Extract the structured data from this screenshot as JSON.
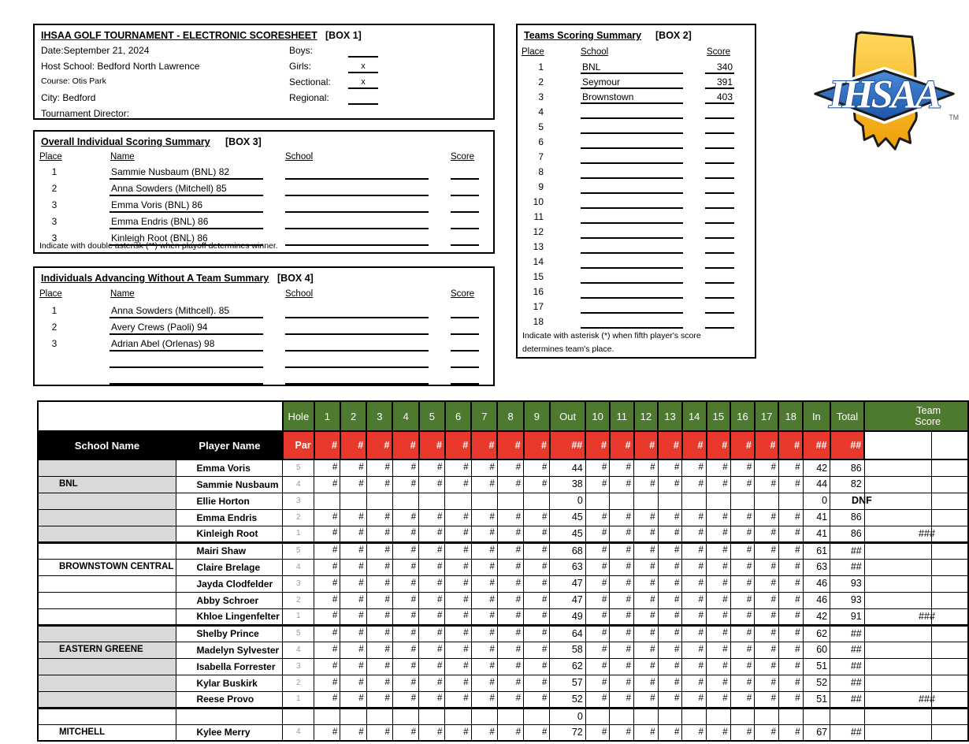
{
  "colors": {
    "header_green": "#4d7a2f",
    "header_red": "#e8392c",
    "shade_gray": "#d9d9d9",
    "pos_gray": "#999999",
    "logo_gold": "#f9b233",
    "logo_blue": "#2d6fc1"
  },
  "box1": {
    "title": "IHSAA GOLF TOURNAMENT - ELECTRONIC SCORESHEET",
    "box_label": "[BOX 1]",
    "fields": [
      {
        "label": "Date:September 21, 2024"
      },
      {
        "label": "Host School: Bedford North Lawrence"
      },
      {
        "label": "Course: Otis Park"
      },
      {
        "label": "City: Bedford"
      },
      {
        "label": "Tournament Director:"
      }
    ],
    "checks": [
      {
        "label": "Boys:",
        "value": ""
      },
      {
        "label": "Girls:",
        "value": "x"
      },
      {
        "label": "Sectional:",
        "value": "x"
      },
      {
        "label": "Regional:",
        "value": ""
      }
    ]
  },
  "box2": {
    "title": "Teams Scoring Summary",
    "box_label": "[BOX 2]",
    "headers": {
      "place": "Place",
      "school": "School",
      "score": "Score"
    },
    "rows": [
      {
        "place": "1",
        "school": "BNL",
        "score": "340"
      },
      {
        "place": "2",
        "school": "Seymour",
        "score": "391"
      },
      {
        "place": "3",
        "school": "Brownstown",
        "score": "403"
      },
      {
        "place": "4",
        "school": "",
        "score": ""
      },
      {
        "place": "5",
        "school": "",
        "score": ""
      },
      {
        "place": "6",
        "school": "",
        "score": ""
      },
      {
        "place": "7",
        "school": "",
        "score": ""
      },
      {
        "place": "8",
        "school": "",
        "score": ""
      },
      {
        "place": "9",
        "school": "",
        "score": ""
      },
      {
        "place": "10",
        "school": "",
        "score": ""
      },
      {
        "place": "11",
        "school": "",
        "score": ""
      },
      {
        "place": "12",
        "school": "",
        "score": ""
      },
      {
        "place": "13",
        "school": "",
        "score": ""
      },
      {
        "place": "14",
        "school": "",
        "score": ""
      },
      {
        "place": "15",
        "school": "",
        "score": ""
      },
      {
        "place": "16",
        "school": "",
        "score": ""
      },
      {
        "place": "17",
        "school": "",
        "score": ""
      },
      {
        "place": "18",
        "school": "",
        "score": ""
      }
    ],
    "note_line1": "Indicate with asterisk (*) when fifth player's score",
    "note_line2": "determines team's place."
  },
  "box3": {
    "title": "Overall Individual Scoring Summary",
    "box_label": "[BOX 3]",
    "headers": {
      "place": "Place",
      "name": "Name",
      "school": "School",
      "score": "Score"
    },
    "rows": [
      {
        "place": "1",
        "name": "Sammie Nusbaum (BNL) 82",
        "school": "",
        "score": ""
      },
      {
        "place": "2",
        "name": "Anna Sowders (Mitchell) 85",
        "school": "",
        "score": ""
      },
      {
        "place": "3",
        "name": "Emma Voris (BNL) 86",
        "school": "",
        "score": ""
      },
      {
        "place": "3",
        "name": "Emma Endris (BNL) 86",
        "school": "",
        "score": ""
      },
      {
        "place": "3",
        "name": "Kinleigh Root (BNL) 86",
        "school": "",
        "score": ""
      }
    ],
    "note": "Indicate with double asterisk (**) when playoff determines winner."
  },
  "box4": {
    "title": "Individuals Advancing Without A Team Summary",
    "box_label": "[BOX 4]",
    "headers": {
      "place": "Place",
      "name": "Name",
      "school": "School",
      "score": "Score"
    },
    "rows": [
      {
        "place": "1",
        "name": "Anna Sowders (Mithcell). 85",
        "school": "",
        "score": ""
      },
      {
        "place": "2",
        "name": "Avery Crews (Paoli) 94",
        "school": "",
        "score": ""
      },
      {
        "place": "3",
        "name": "Adrian Abel (Orlenas) 98",
        "school": "",
        "score": ""
      },
      {
        "place": "",
        "name": "",
        "school": "",
        "score": ""
      },
      {
        "place": "",
        "name": "",
        "school": "",
        "score": ""
      }
    ]
  },
  "logo": {
    "text": "IHSAA",
    "tm": "TM"
  },
  "scoretable": {
    "hash": "#",
    "school_header": "School Name",
    "player_header": "Player Name",
    "green_headers": [
      "Hole",
      "1",
      "2",
      "3",
      "4",
      "5",
      "6",
      "7",
      "8",
      "9",
      "Out",
      "10",
      "11",
      "12",
      "13",
      "14",
      "15",
      "16",
      "17",
      "18",
      "In",
      "Total",
      "Team Score"
    ],
    "par_row": {
      "label": "Par",
      "hole_fill": "#",
      "sum_fill": "##"
    },
    "rows": [
      {
        "school": "",
        "player": "Emma Voris",
        "pos": "5",
        "has_scores": true,
        "out": "44",
        "in": "42",
        "total": "86",
        "team": "",
        "shaded": true,
        "group_end": false
      },
      {
        "school": "BNL",
        "player": "Sammie Nusbaum",
        "pos": "4",
        "has_scores": true,
        "out": "38",
        "in": "44",
        "total": "82",
        "team": "",
        "shaded": true,
        "group_end": false
      },
      {
        "school": "",
        "player": "Ellie Horton",
        "pos": "3",
        "has_scores": false,
        "out": "0",
        "in": "0",
        "total": "DNF",
        "team": "",
        "shaded": true,
        "group_end": false
      },
      {
        "school": "",
        "player": "Emma Endris",
        "pos": "2",
        "has_scores": true,
        "out": "45",
        "in": "41",
        "total": "86",
        "team": "",
        "shaded": true,
        "group_end": false
      },
      {
        "school": "",
        "player": "Kinleigh Root",
        "pos": "1",
        "has_scores": true,
        "out": "45",
        "in": "41",
        "total": "86",
        "team": "###",
        "shaded": true,
        "group_end": true
      },
      {
        "school": "",
        "player": "Mairi Shaw",
        "pos": "5",
        "has_scores": true,
        "out": "68",
        "in": "61",
        "total": "##",
        "team": "",
        "shaded": false,
        "group_end": false
      },
      {
        "school": "BROWNSTOWN CENTRAL",
        "player": "Claire Brelage",
        "pos": "4",
        "has_scores": true,
        "out": "63",
        "in": "63",
        "total": "##",
        "team": "",
        "shaded": false,
        "group_end": false
      },
      {
        "school": "",
        "player": "Jayda Clodfelder",
        "pos": "3",
        "has_scores": true,
        "out": "47",
        "in": "46",
        "total": "93",
        "team": "",
        "shaded": false,
        "group_end": false
      },
      {
        "school": "",
        "player": "Abby Schroer",
        "pos": "2",
        "has_scores": true,
        "out": "47",
        "in": "46",
        "total": "93",
        "team": "",
        "shaded": false,
        "group_end": false
      },
      {
        "school": "",
        "player": "Khloe Lingenfelter",
        "pos": "1",
        "has_scores": true,
        "out": "49",
        "in": "42",
        "total": "91",
        "team": "###",
        "shaded": false,
        "group_end": true
      },
      {
        "school": "",
        "player": "Shelby Prince",
        "pos": "5",
        "has_scores": true,
        "out": "64",
        "in": "62",
        "total": "##",
        "team": "",
        "shaded": true,
        "group_end": false
      },
      {
        "school": "EASTERN GREENE",
        "player": "Madelyn Sylvester",
        "pos": "4",
        "has_scores": true,
        "out": "58",
        "in": "60",
        "total": "##",
        "team": "",
        "shaded": true,
        "group_end": false
      },
      {
        "school": "",
        "player": "Isabella Forrester",
        "pos": "3",
        "has_scores": true,
        "out": "62",
        "in": "51",
        "total": "##",
        "team": "",
        "shaded": true,
        "group_end": false
      },
      {
        "school": "",
        "player": "Kylar Buskirk",
        "pos": "2",
        "has_scores": true,
        "out": "57",
        "in": "52",
        "total": "##",
        "team": "",
        "shaded": true,
        "group_end": false
      },
      {
        "school": "",
        "player": "Reese Provo",
        "pos": "1",
        "has_scores": true,
        "out": "52",
        "in": "51",
        "total": "##",
        "team": "###",
        "shaded": true,
        "group_end": true
      },
      {
        "school": "",
        "player": "",
        "pos": "",
        "has_scores": false,
        "out": "0",
        "in": "",
        "total": "",
        "team": "",
        "shaded": false,
        "group_end": false
      },
      {
        "school": "MITCHELL",
        "player": "Kylee Merry",
        "pos": "4",
        "has_scores": true,
        "out": "72",
        "in": "67",
        "total": "##",
        "team": "",
        "shaded": false,
        "group_end": false
      }
    ]
  }
}
